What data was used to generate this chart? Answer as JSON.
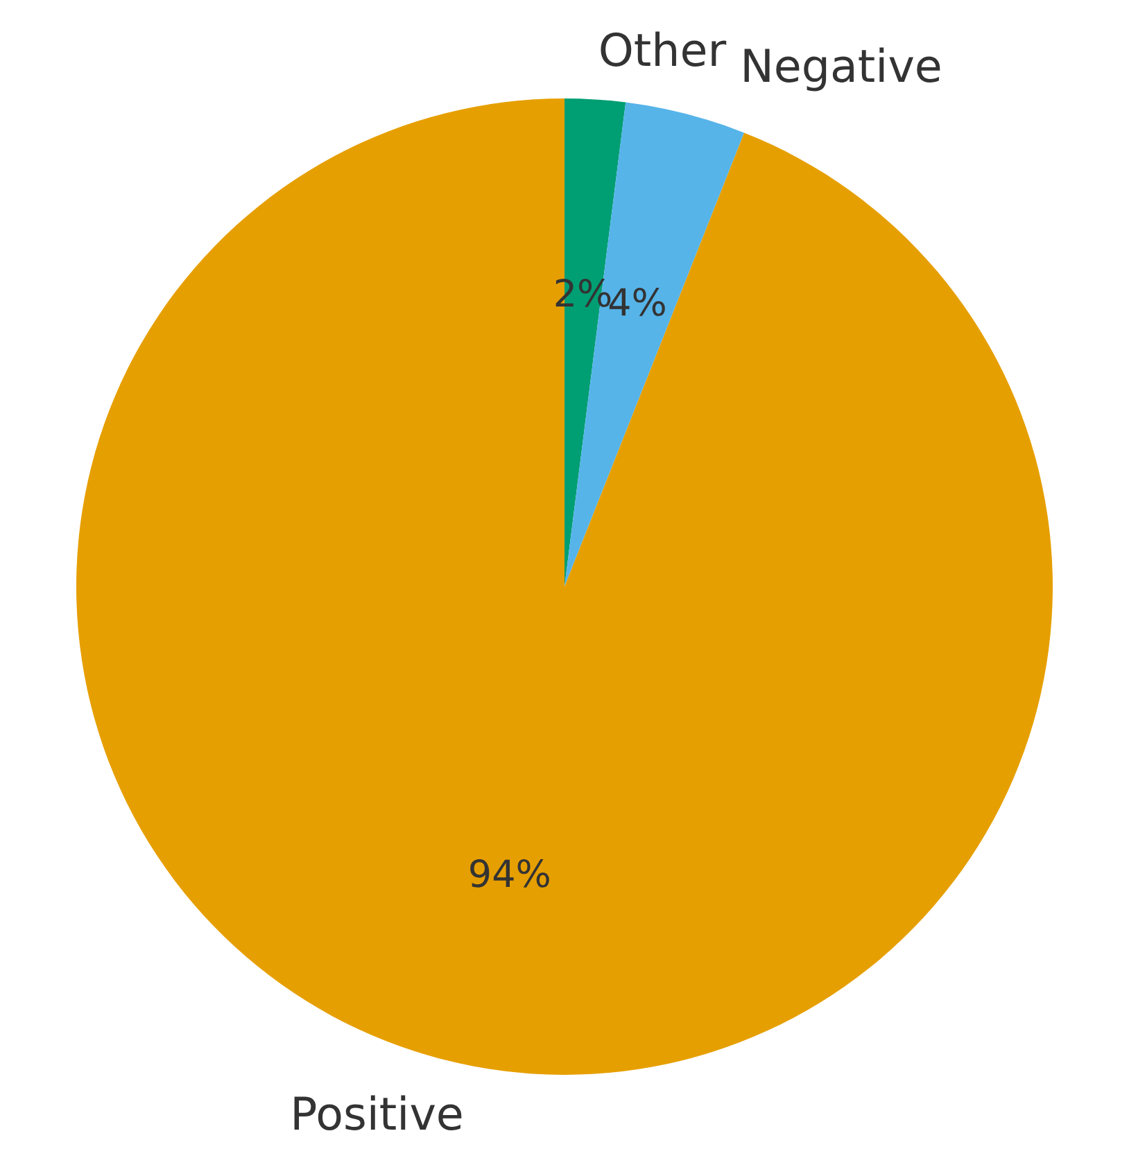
{
  "chart_data": {
    "type": "pie",
    "categories": [
      "Other",
      "Negative",
      "Positive"
    ],
    "values": [
      2,
      4,
      94
    ],
    "colors": [
      "#009e73",
      "#56b4e9",
      "#e69f00"
    ],
    "value_labels": [
      "2%",
      "4%",
      "94%"
    ]
  }
}
